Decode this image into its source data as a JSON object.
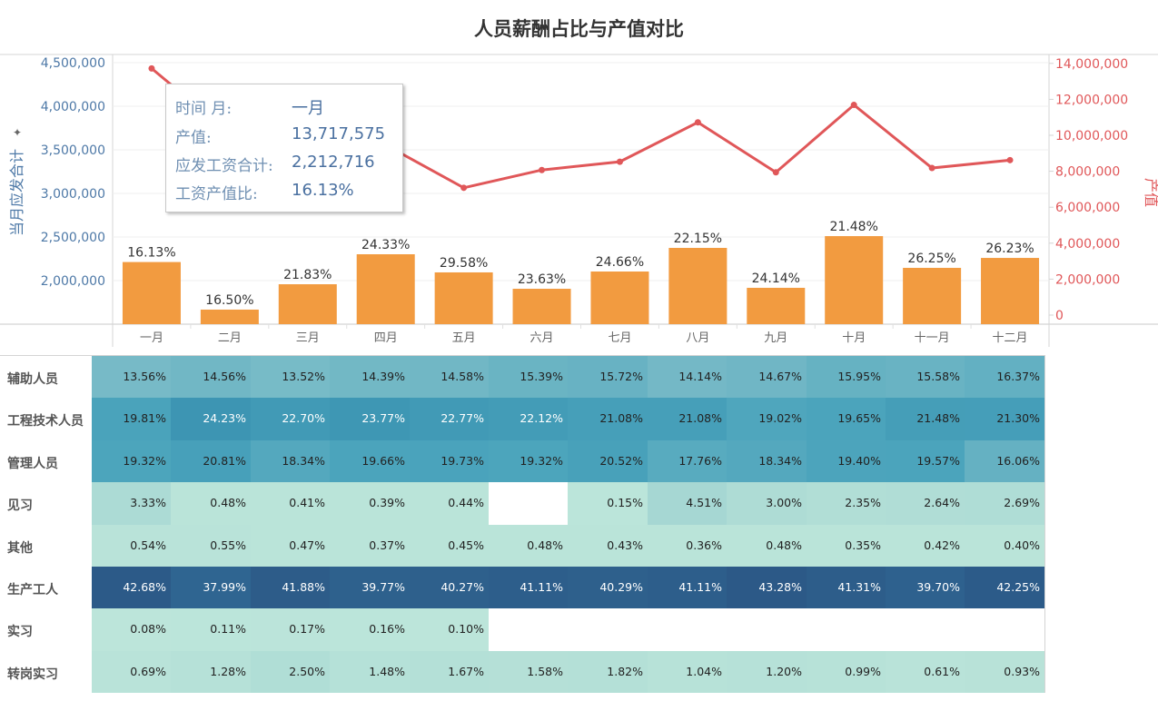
{
  "title": "人员薪酬占比与产值对比",
  "chart_data": [
    {
      "type": "bar+line",
      "categories": [
        "一月",
        "二月",
        "三月",
        "四月",
        "五月",
        "六月",
        "七月",
        "八月",
        "九月",
        "十月",
        "十一月",
        "十二月"
      ],
      "series": [
        {
          "name": "当月应发合计",
          "type": "bar",
          "axis": "left",
          "color": "#f29b40",
          "values": [
            2212716,
            1667000,
            1958000,
            2302000,
            2094000,
            1906000,
            2104000,
            2375000,
            1917000,
            2510000,
            2146000,
            2260000
          ],
          "labels": [
            "16.13%",
            "16.50%",
            "21.83%",
            "24.33%",
            "29.58%",
            "23.63%",
            "24.66%",
            "22.15%",
            "24.14%",
            "21.48%",
            "26.25%",
            "26.23%"
          ]
        },
        {
          "name": "产值",
          "type": "line",
          "axis": "right",
          "color": "#e05759",
          "values": [
            13717575,
            10100000,
            8970000,
            9460000,
            7080000,
            8070000,
            8530000,
            10720000,
            7940000,
            11690000,
            8180000,
            8620000
          ]
        }
      ],
      "ylabel_left": "当月应发合计",
      "ylabel_right": "产值",
      "ylim_left": [
        1500000,
        4600000
      ],
      "ylim_right": [
        0,
        14300000
      ],
      "yticks_left": [
        "2,000,000",
        "2,500,000",
        "3,000,000",
        "3,500,000",
        "4,000,000",
        "4,500,000"
      ],
      "yticks_left_values": [
        2000000,
        2500000,
        3000000,
        3500000,
        4000000,
        4500000
      ],
      "yticks_right": [
        "0",
        "2,000,000",
        "4,000,000",
        "6,000,000",
        "8,000,000",
        "10,000,000",
        "12,000,000",
        "14,000,000"
      ],
      "yticks_right_values": [
        0,
        2000000,
        4000000,
        6000000,
        8000000,
        10000000,
        12000000,
        14000000
      ],
      "grid": true,
      "left_axis_color": "#4e79a7",
      "right_axis_color": "#e05759"
    },
    {
      "type": "heatmap",
      "columns": [
        "一月",
        "二月",
        "三月",
        "四月",
        "五月",
        "六月",
        "七月",
        "八月",
        "九月",
        "十月",
        "十一月",
        "十二月"
      ],
      "rows": [
        {
          "label": "辅助人员",
          "values": [
            "13.56%",
            "14.56%",
            "13.52%",
            "14.39%",
            "14.58%",
            "15.39%",
            "15.72%",
            "14.14%",
            "14.67%",
            "15.95%",
            "15.58%",
            "16.37%"
          ]
        },
        {
          "label": "工程技术人员",
          "values": [
            "19.81%",
            "24.23%",
            "22.70%",
            "23.77%",
            "22.77%",
            "22.12%",
            "21.08%",
            "21.08%",
            "19.02%",
            "19.65%",
            "21.48%",
            "21.30%"
          ]
        },
        {
          "label": "管理人员",
          "values": [
            "19.32%",
            "20.81%",
            "18.34%",
            "19.66%",
            "19.73%",
            "19.32%",
            "20.52%",
            "17.76%",
            "18.34%",
            "19.40%",
            "19.57%",
            "16.06%"
          ]
        },
        {
          "label": "见习",
          "values": [
            "3.33%",
            "0.48%",
            "0.41%",
            "0.39%",
            "0.44%",
            null,
            "0.15%",
            "4.51%",
            "3.00%",
            "2.35%",
            "2.64%",
            "2.69%"
          ]
        },
        {
          "label": "其他",
          "values": [
            "0.54%",
            "0.55%",
            "0.47%",
            "0.37%",
            "0.45%",
            "0.48%",
            "0.43%",
            "0.36%",
            "0.48%",
            "0.35%",
            "0.42%",
            "0.40%"
          ]
        },
        {
          "label": "生产工人",
          "values": [
            "42.68%",
            "37.99%",
            "41.88%",
            "39.77%",
            "40.27%",
            "41.11%",
            "40.29%",
            "41.11%",
            "43.28%",
            "41.31%",
            "39.70%",
            "42.25%"
          ]
        },
        {
          "label": "实习",
          "values": [
            "0.08%",
            "0.11%",
            "0.17%",
            "0.16%",
            "0.10%",
            null,
            null,
            null,
            null,
            null,
            null,
            null
          ]
        },
        {
          "label": "转岗实习",
          "values": [
            "0.69%",
            "1.28%",
            "2.50%",
            "1.48%",
            "1.67%",
            "1.58%",
            "1.82%",
            "1.04%",
            "1.20%",
            "0.99%",
            "0.61%",
            "0.93%"
          ]
        }
      ]
    }
  ],
  "tooltip": {
    "rows": [
      {
        "label": "时间 月:",
        "value": "一月"
      },
      {
        "label": "产值:",
        "value": "13,717,575"
      },
      {
        "label": "应发工资合计:",
        "value": "2,212,716"
      },
      {
        "label": "工资产值比:",
        "value": "16.13%"
      }
    ]
  }
}
